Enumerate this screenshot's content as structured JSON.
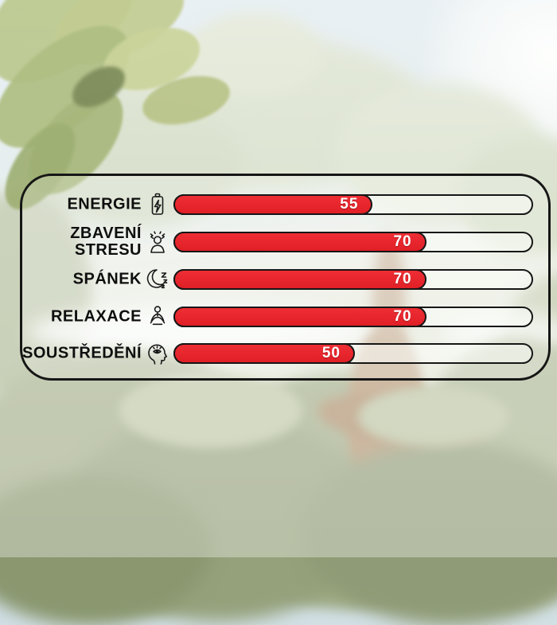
{
  "chart_data": {
    "type": "bar",
    "orientation": "horizontal",
    "title": "",
    "categories": [
      "ENERGIE",
      "ZBAVENÍ STRESU",
      "SPÁNEK",
      "RELAXACE",
      "SOUSTŘEDĚNÍ"
    ],
    "values": [
      55,
      70,
      70,
      70,
      50
    ],
    "value_labels": [
      "55",
      "70",
      "70",
      "70",
      "50"
    ],
    "icons": [
      "battery-charging-icon",
      "stressed-person-icon",
      "moon-sleep-icon",
      "meditation-icon",
      "focus-head-icon"
    ],
    "xlim": [
      0,
      100
    ],
    "grid": false,
    "legend": false,
    "bar_color": "#e01f26",
    "track_color": "#f5f6f2",
    "outline_color": "#161616",
    "value_text_color": "#ffffff",
    "label_text_color": "#0e0e0e",
    "background": "washed-out jungle photo with large tree"
  }
}
